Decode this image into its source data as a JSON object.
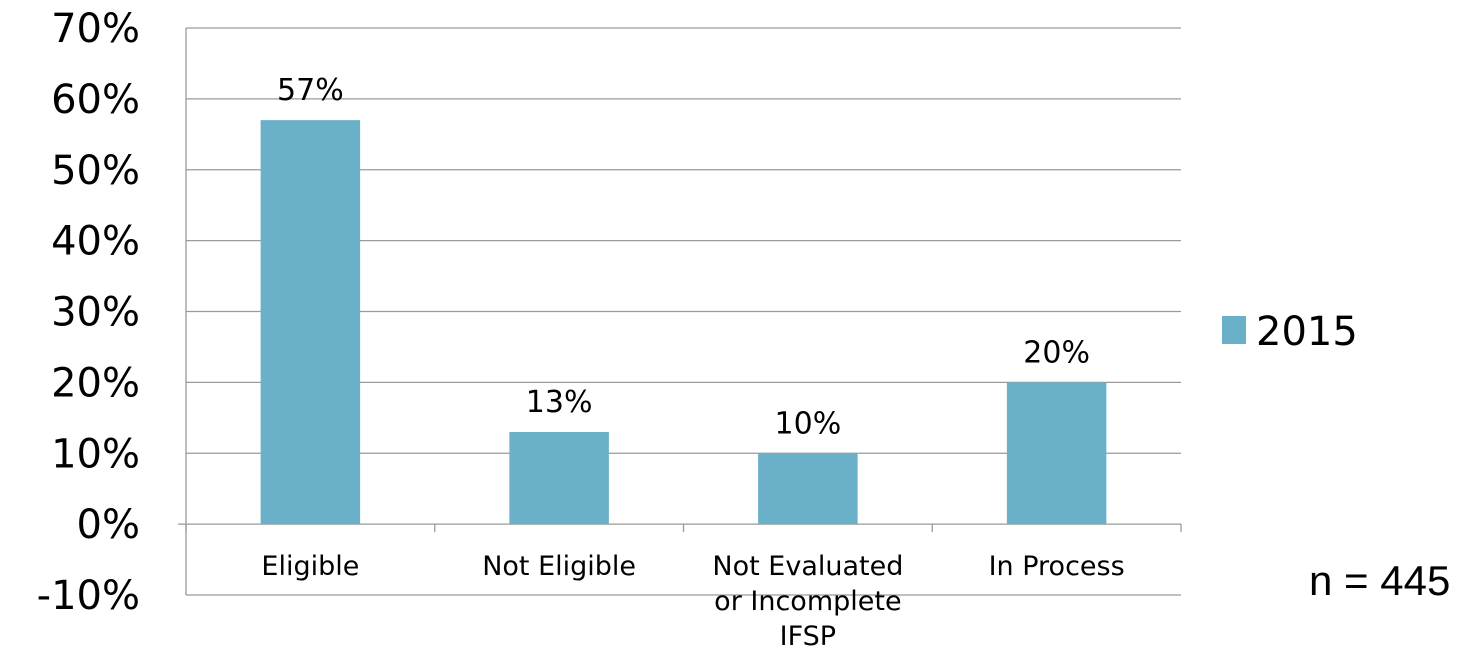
{
  "chart_data": {
    "type": "bar",
    "categories": [
      "Eligible",
      "Not Eligible",
      "Not Evaluated or Incomplete IFSP",
      "In Process"
    ],
    "category_lines": [
      [
        "Eligible"
      ],
      [
        "Not Eligible"
      ],
      [
        "Not Evaluated",
        "or Incomplete",
        "IFSP"
      ],
      [
        "In Process"
      ]
    ],
    "series": [
      {
        "name": "2015",
        "values": [
          57,
          13,
          10,
          20
        ],
        "color": "#6bb0c9"
      }
    ],
    "data_labels": [
      "57%",
      "13%",
      "10%",
      "20%"
    ],
    "ylim": [
      -10,
      70
    ],
    "y_ticks": [
      70,
      60,
      50,
      40,
      30,
      20,
      10,
      0,
      -10
    ],
    "y_tick_labels": [
      "70%",
      "60%",
      "50%",
      "40%",
      "30%",
      "20%",
      "10%",
      "0%",
      "-10%"
    ],
    "grid": true,
    "legend_position": "right",
    "title": "",
    "xlabel": "",
    "ylabel": ""
  },
  "note": "n = 445",
  "colors": {
    "bar": "#6bb0c9",
    "grid": "#9a9a9a",
    "axis": "#9a9a9a",
    "text": "#000000"
  }
}
